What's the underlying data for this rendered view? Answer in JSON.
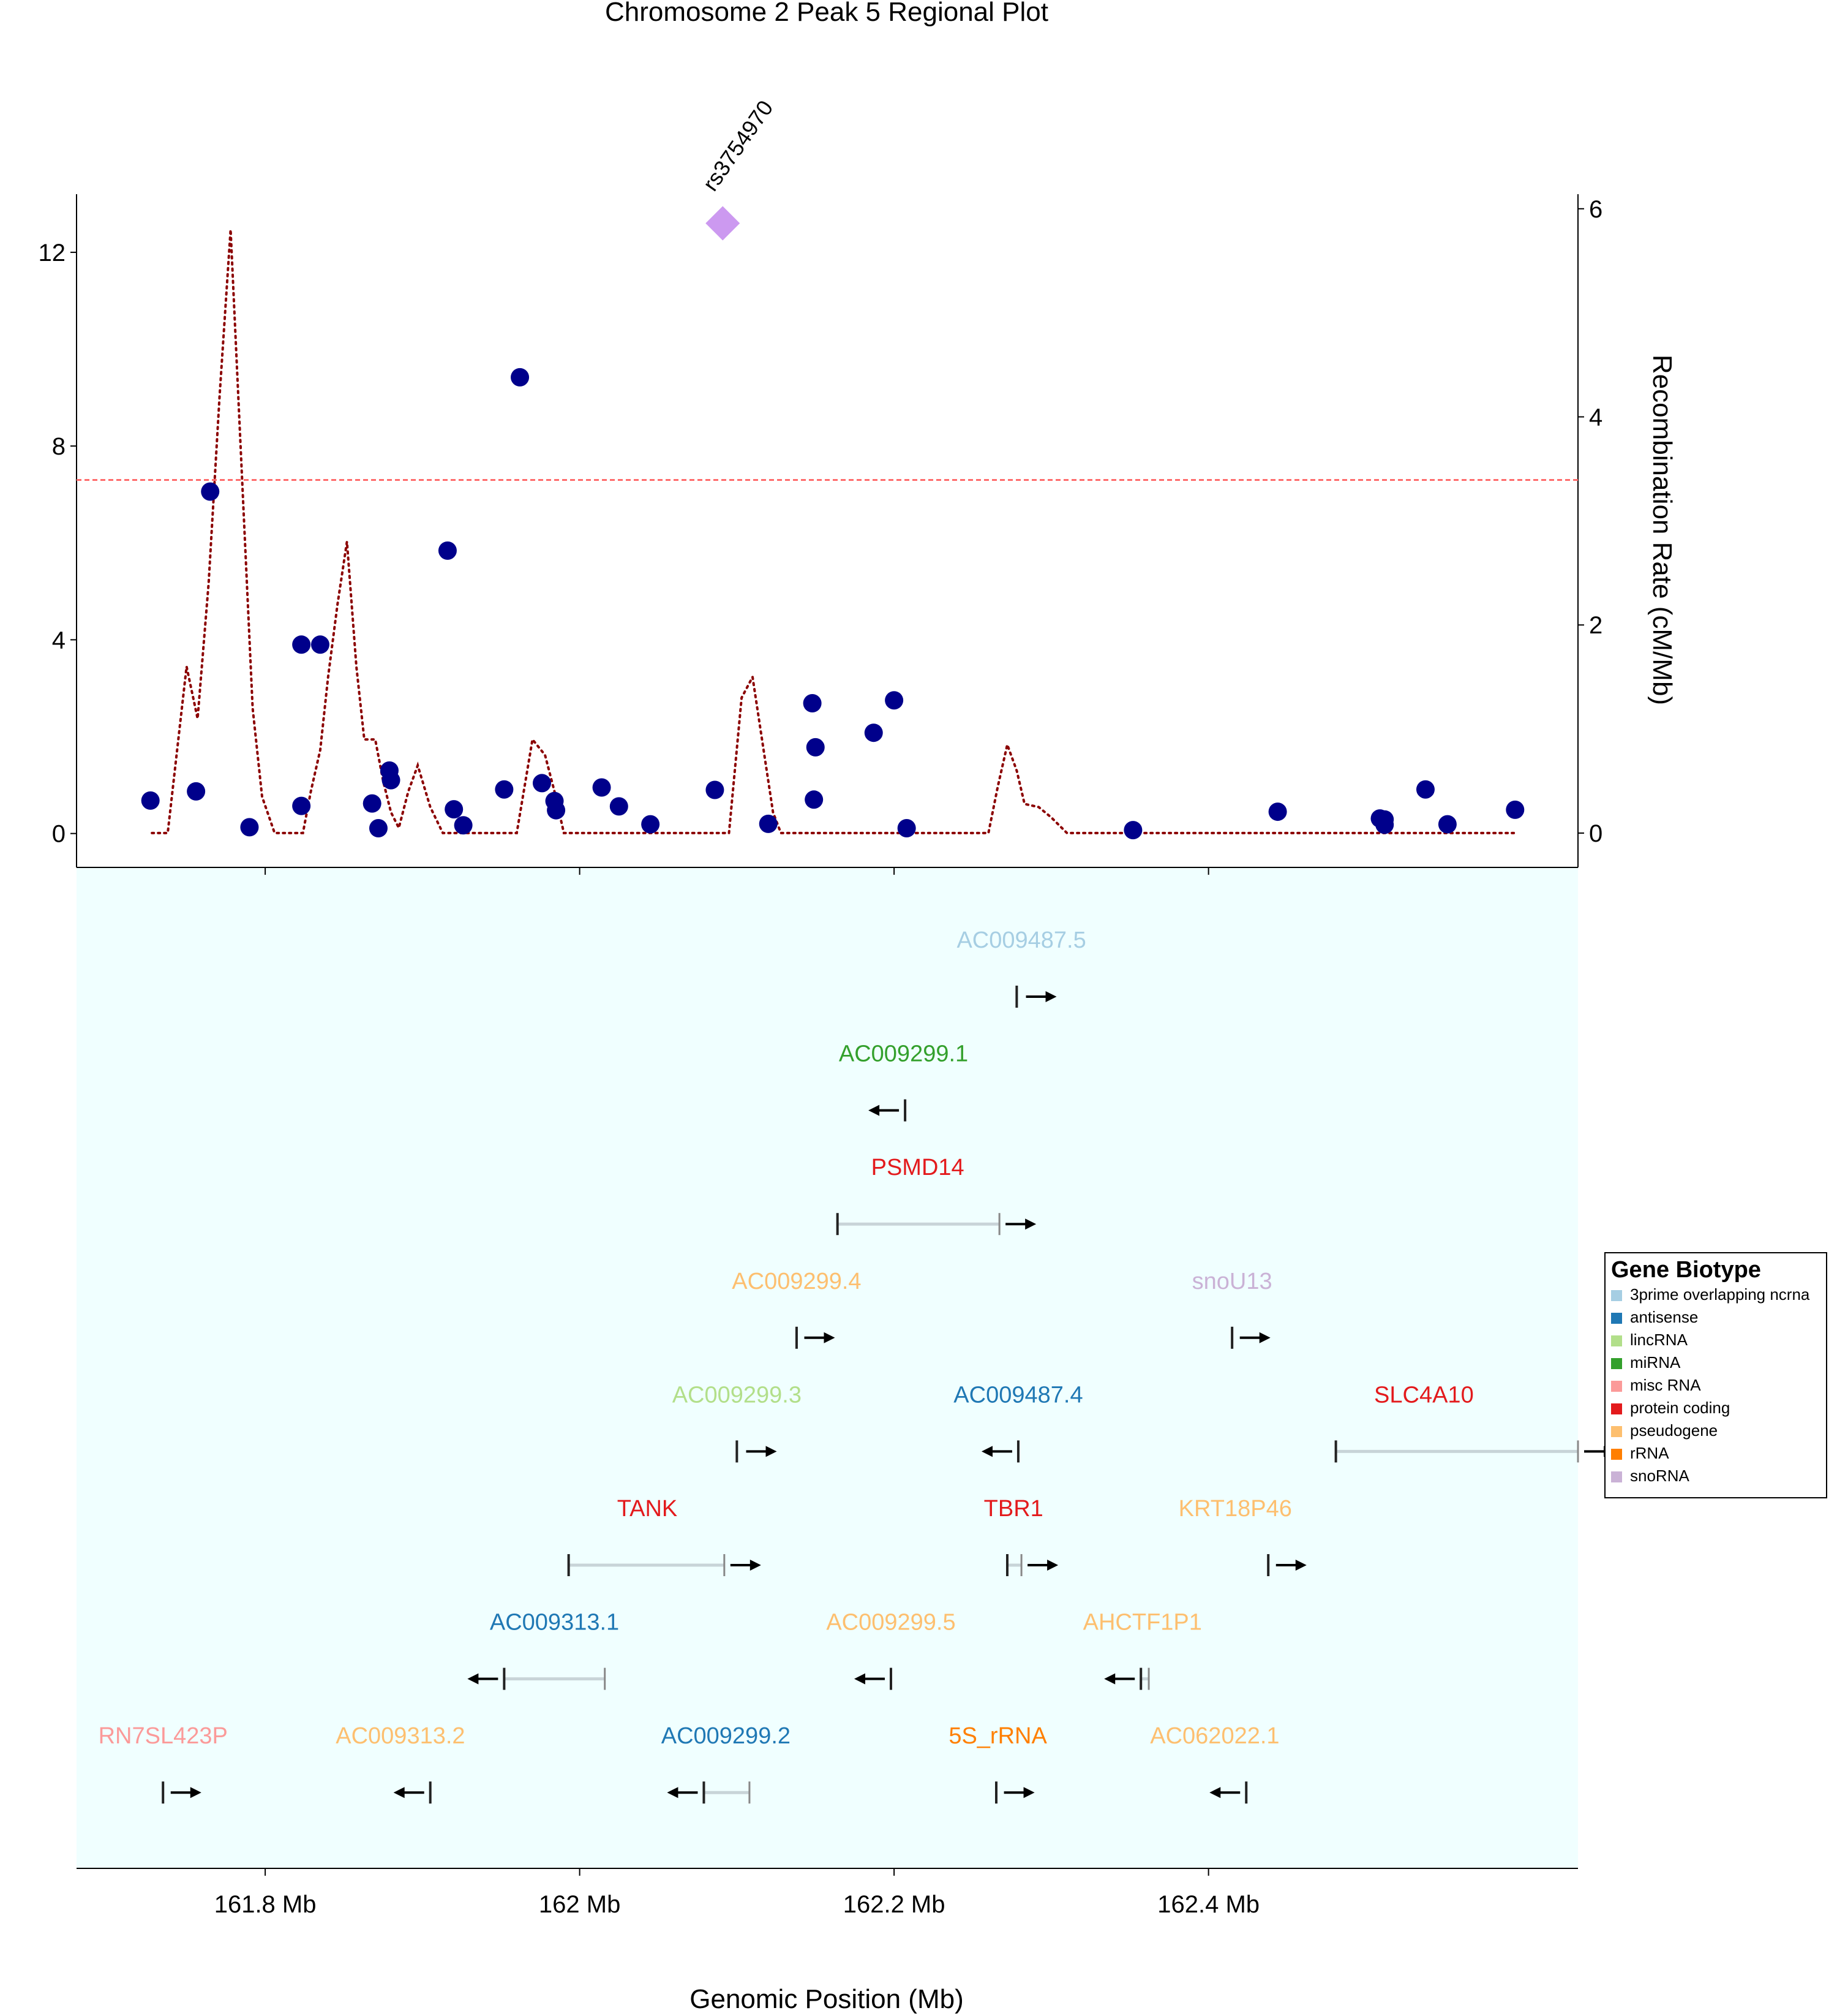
{
  "chart_data": {
    "type": "scatter",
    "title": "Chromosome 2 Peak 5 Regional Plot",
    "xlabel": "Genomic Position (Mb)",
    "ylabel": "",
    "y2label": "Recombination Rate (cM/Mb)",
    "xlim": [
      161.68,
      162.635
    ],
    "ylim": [
      -0.7,
      13.2
    ],
    "y2lim": [
      -0.33,
      6.14
    ],
    "x_ticks": [
      161.8,
      162.0,
      162.2,
      162.4
    ],
    "x_tick_labels": [
      "161.8 Mb",
      "162 Mb",
      "162.2 Mb",
      "162.4 Mb"
    ],
    "y_ticks": [
      0,
      4,
      8,
      12
    ],
    "y_tick_labels": [
      "0",
      "4",
      "8",
      "12"
    ],
    "y2_ticks": [
      0,
      2,
      4,
      6
    ],
    "y2_tick_labels": [
      "0",
      "2",
      "4",
      "6"
    ],
    "significance_line": 7.3,
    "colors": {
      "points": "#00008B",
      "lead": "#CC99F0",
      "recombination": "#8B0000",
      "significance": "#FF6B6B",
      "gene_panel_bg": "#F0FFFF"
    },
    "lead_snp": {
      "label": "rs3754970",
      "x": 162.091,
      "y": 12.6
    },
    "points": [
      {
        "x": 161.727,
        "y": 0.68
      },
      {
        "x": 161.756,
        "y": 0.87
      },
      {
        "x": 161.765,
        "y": 7.06
      },
      {
        "x": 161.79,
        "y": 0.13
      },
      {
        "x": 161.823,
        "y": 3.9
      },
      {
        "x": 161.835,
        "y": 3.9
      },
      {
        "x": 161.823,
        "y": 0.57
      },
      {
        "x": 161.868,
        "y": 0.62
      },
      {
        "x": 161.872,
        "y": 0.11
      },
      {
        "x": 161.879,
        "y": 1.3
      },
      {
        "x": 161.88,
        "y": 1.1
      },
      {
        "x": 161.916,
        "y": 5.84
      },
      {
        "x": 161.92,
        "y": 0.5
      },
      {
        "x": 161.926,
        "y": 0.17
      },
      {
        "x": 161.952,
        "y": 0.91
      },
      {
        "x": 161.962,
        "y": 9.42
      },
      {
        "x": 161.976,
        "y": 1.04
      },
      {
        "x": 161.984,
        "y": 0.67
      },
      {
        "x": 161.985,
        "y": 0.48
      },
      {
        "x": 162.014,
        "y": 0.95
      },
      {
        "x": 162.025,
        "y": 0.56
      },
      {
        "x": 162.045,
        "y": 0.19
      },
      {
        "x": 162.086,
        "y": 0.9
      },
      {
        "x": 162.12,
        "y": 0.2
      },
      {
        "x": 162.148,
        "y": 2.69
      },
      {
        "x": 162.15,
        "y": 1.78
      },
      {
        "x": 162.149,
        "y": 0.7
      },
      {
        "x": 162.187,
        "y": 2.08
      },
      {
        "x": 162.2,
        "y": 2.75
      },
      {
        "x": 162.208,
        "y": 0.11
      },
      {
        "x": 162.352,
        "y": 0.07
      },
      {
        "x": 162.444,
        "y": 0.45
      },
      {
        "x": 162.509,
        "y": 0.31
      },
      {
        "x": 162.512,
        "y": 0.29
      },
      {
        "x": 162.512,
        "y": 0.18
      },
      {
        "x": 162.538,
        "y": 0.91
      },
      {
        "x": 162.552,
        "y": 0.19
      },
      {
        "x": 162.595,
        "y": 0.49
      }
    ],
    "recombination": [
      [
        161.728,
        0
      ],
      [
        161.738,
        0
      ],
      [
        161.75,
        1.6
      ],
      [
        161.757,
        1.1
      ],
      [
        161.764,
        2.4
      ],
      [
        161.771,
        4.2
      ],
      [
        161.778,
        5.8
      ],
      [
        161.785,
        3.5
      ],
      [
        161.792,
        1.2
      ],
      [
        161.798,
        0.35
      ],
      [
        161.806,
        0
      ],
      [
        161.824,
        0
      ],
      [
        161.829,
        0.4
      ],
      [
        161.835,
        0.8
      ],
      [
        161.84,
        1.5
      ],
      [
        161.846,
        2.2
      ],
      [
        161.852,
        2.8
      ],
      [
        161.858,
        1.6
      ],
      [
        161.863,
        0.9
      ],
      [
        161.87,
        0.9
      ],
      [
        161.875,
        0.5
      ],
      [
        161.88,
        0.2
      ],
      [
        161.885,
        0.05
      ],
      [
        161.891,
        0.4
      ],
      [
        161.897,
        0.65
      ],
      [
        161.905,
        0.25
      ],
      [
        161.913,
        0
      ],
      [
        161.96,
        0
      ],
      [
        161.97,
        0.9
      ],
      [
        161.978,
        0.75
      ],
      [
        161.984,
        0.4
      ],
      [
        161.99,
        0
      ],
      [
        162.095,
        0
      ],
      [
        162.103,
        1.3
      ],
      [
        162.11,
        1.5
      ],
      [
        162.117,
        0.8
      ],
      [
        162.123,
        0.2
      ],
      [
        162.128,
        0
      ],
      [
        162.26,
        0
      ],
      [
        162.266,
        0.45
      ],
      [
        162.272,
        0.85
      ],
      [
        162.278,
        0.6
      ],
      [
        162.283,
        0.28
      ],
      [
        162.292,
        0.25
      ],
      [
        162.3,
        0.15
      ],
      [
        162.31,
        0
      ],
      [
        162.58,
        0
      ],
      [
        162.595,
        0
      ]
    ],
    "legend": {
      "title": "Gene Biotype",
      "placement": "right",
      "entries": [
        {
          "label": "3prime overlapping ncrna",
          "color": "#A6CEE3"
        },
        {
          "label": "antisense",
          "color": "#1F78B4"
        },
        {
          "label": "lincRNA",
          "color": "#B2DF8A"
        },
        {
          "label": "miRNA",
          "color": "#33A02C"
        },
        {
          "label": "misc RNA",
          "color": "#FB9A99"
        },
        {
          "label": "protein coding",
          "color": "#E31A1C"
        },
        {
          "label": "pseudogene",
          "color": "#FDBF6F"
        },
        {
          "label": "rRNA",
          "color": "#FF7F00"
        },
        {
          "label": "snoRNA",
          "color": "#CAB2D6"
        }
      ]
    },
    "genes": [
      {
        "name": "AC009487.5",
        "biotype": "3prime overlapping ncrna",
        "row": 1,
        "start": 162.278,
        "end": 162.28,
        "strand": "+",
        "label_x": 162.281
      },
      {
        "name": "AC009299.1",
        "biotype": "miRNA",
        "row": 2,
        "start": 162.207,
        "end": 162.208,
        "strand": "-",
        "label_x": 162.206
      },
      {
        "name": "PSMD14",
        "biotype": "protein coding",
        "row": 3,
        "start": 162.164,
        "end": 162.267,
        "strand": "+",
        "label_x": 162.215
      },
      {
        "name": "AC009299.4",
        "biotype": "pseudogene",
        "row": 4,
        "start": 162.138,
        "end": 162.139,
        "strand": "+",
        "label_x": 162.138
      },
      {
        "name": "snoU13",
        "biotype": "snoRNA",
        "row": 4,
        "start": 162.415,
        "end": 162.416,
        "strand": "+",
        "label_x": 162.415
      },
      {
        "name": "AC009299.3",
        "biotype": "lincRNA",
        "row": 5,
        "start": 162.1,
        "end": 162.102,
        "strand": "+",
        "label_x": 162.1
      },
      {
        "name": "AC009487.4",
        "biotype": "antisense",
        "row": 5,
        "start": 162.279,
        "end": 162.28,
        "strand": "-",
        "label_x": 162.279
      },
      {
        "name": "SLC4A10",
        "biotype": "protein coding",
        "row": 5,
        "start": 162.481,
        "end": 162.635,
        "strand": "+",
        "label_x": 162.537
      },
      {
        "name": "TANK",
        "biotype": "protein coding",
        "row": 6,
        "start": 161.993,
        "end": 162.092,
        "strand": "+",
        "label_x": 162.043
      },
      {
        "name": "TBR1",
        "biotype": "protein coding",
        "row": 6,
        "start": 162.272,
        "end": 162.281,
        "strand": "+",
        "label_x": 162.276
      },
      {
        "name": "KRT18P46",
        "biotype": "pseudogene",
        "row": 6,
        "start": 162.438,
        "end": 162.439,
        "strand": "+",
        "label_x": 162.417
      },
      {
        "name": "AC009313.1",
        "biotype": "antisense",
        "row": 7,
        "start": 161.952,
        "end": 162.016,
        "strand": "-",
        "label_x": 161.984
      },
      {
        "name": "AC009299.5",
        "biotype": "pseudogene",
        "row": 7,
        "start": 162.198,
        "end": 162.199,
        "strand": "-",
        "label_x": 162.198
      },
      {
        "name": "AHCTF1P1",
        "biotype": "pseudogene",
        "row": 7,
        "start": 162.357,
        "end": 162.362,
        "strand": "-",
        "label_x": 162.358
      },
      {
        "name": "RN7SL423P",
        "biotype": "misc RNA",
        "row": 8,
        "start": 161.735,
        "end": 161.736,
        "strand": "+",
        "label_x": 161.735
      },
      {
        "name": "AC009313.2",
        "biotype": "pseudogene",
        "row": 8,
        "start": 161.905,
        "end": 161.906,
        "strand": "-",
        "label_x": 161.886
      },
      {
        "name": "AC009299.2",
        "biotype": "antisense",
        "row": 8,
        "start": 162.079,
        "end": 162.108,
        "strand": "-",
        "label_x": 162.093
      },
      {
        "name": "5S_rRNA",
        "biotype": "rRNA",
        "row": 8,
        "start": 162.265,
        "end": 162.266,
        "strand": "+",
        "label_x": 162.266
      },
      {
        "name": "AC062022.1",
        "biotype": "pseudogene",
        "row": 8,
        "start": 162.424,
        "end": 162.425,
        "strand": "-",
        "label_x": 162.404
      }
    ]
  }
}
